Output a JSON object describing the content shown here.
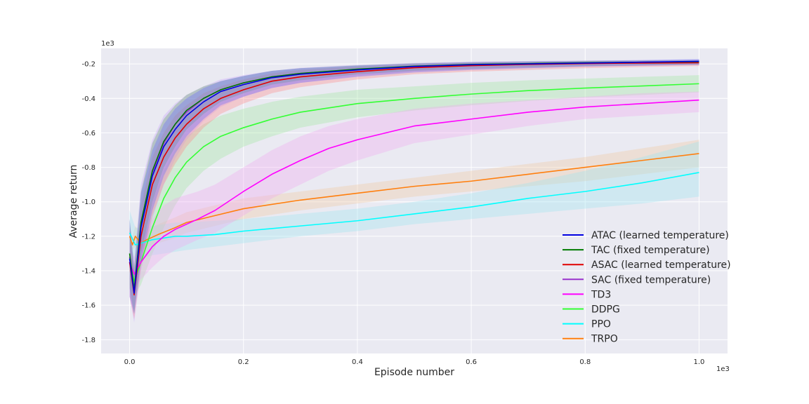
{
  "chart_data": {
    "type": "line",
    "xlabel": "Episode number",
    "ylabel": "Average return",
    "x_multiplier": "1e3",
    "y_multiplier": "1e3",
    "xlim": [
      -0.05,
      1.05
    ],
    "ylim": [
      -1.88,
      -0.11
    ],
    "x_ticks": [
      "0.0",
      "0.2",
      "0.4",
      "0.6",
      "0.8",
      "1.0"
    ],
    "y_ticks": [
      "-0.2",
      "-0.4",
      "-0.6",
      "-0.8",
      "-1.0",
      "-1.2",
      "-1.4",
      "-1.6",
      "-1.8"
    ],
    "grid": true,
    "legend_position": "lower-right",
    "series": [
      {
        "name": "ATAC (learned temperature)",
        "color": "#0000e0",
        "band_color": "#6a6aff",
        "x": [
          0.0,
          0.008,
          0.02,
          0.04,
          0.06,
          0.08,
          0.1,
          0.13,
          0.16,
          0.2,
          0.25,
          0.3,
          0.4,
          0.5,
          0.6,
          0.7,
          0.8,
          0.9,
          1.0
        ],
        "y": [
          -1.33,
          -1.53,
          -1.15,
          -0.85,
          -0.68,
          -0.58,
          -0.5,
          -0.42,
          -0.36,
          -0.32,
          -0.28,
          -0.26,
          -0.235,
          -0.215,
          -0.205,
          -0.2,
          -0.195,
          -0.19,
          -0.185
        ],
        "lower": [
          -1.55,
          -1.65,
          -1.35,
          -1.05,
          -0.85,
          -0.72,
          -0.62,
          -0.52,
          -0.44,
          -0.39,
          -0.34,
          -0.31,
          -0.275,
          -0.25,
          -0.235,
          -0.225,
          -0.215,
          -0.21,
          -0.205
        ],
        "upper": [
          -1.1,
          -1.4,
          -0.95,
          -0.7,
          -0.55,
          -0.46,
          -0.4,
          -0.34,
          -0.3,
          -0.27,
          -0.24,
          -0.225,
          -0.21,
          -0.198,
          -0.19,
          -0.186,
          -0.182,
          -0.178,
          -0.172
        ]
      },
      {
        "name": "TAC (fixed temperature)",
        "color": "#007a00",
        "band_color": "#6aa86a",
        "x": [
          0.0,
          0.008,
          0.02,
          0.04,
          0.06,
          0.08,
          0.1,
          0.13,
          0.16,
          0.2,
          0.25,
          0.3,
          0.4,
          0.5,
          0.6,
          0.7,
          0.8,
          0.9,
          1.0
        ],
        "y": [
          -1.3,
          -1.51,
          -1.12,
          -0.82,
          -0.65,
          -0.55,
          -0.47,
          -0.4,
          -0.35,
          -0.31,
          -0.275,
          -0.255,
          -0.23,
          -0.213,
          -0.203,
          -0.198,
          -0.193,
          -0.19,
          -0.187
        ],
        "lower": [
          -1.5,
          -1.65,
          -1.3,
          -1.0,
          -0.8,
          -0.68,
          -0.58,
          -0.49,
          -0.42,
          -0.37,
          -0.32,
          -0.295,
          -0.26,
          -0.24,
          -0.228,
          -0.22,
          -0.213,
          -0.208,
          -0.204
        ],
        "upper": [
          -1.1,
          -1.38,
          -0.94,
          -0.66,
          -0.52,
          -0.44,
          -0.38,
          -0.33,
          -0.3,
          -0.27,
          -0.24,
          -0.225,
          -0.208,
          -0.196,
          -0.19,
          -0.186,
          -0.182,
          -0.18,
          -0.177
        ]
      },
      {
        "name": "ASAC (learned temperature)",
        "color": "#e00000",
        "band_color": "#ff8a8a",
        "x": [
          0.0,
          0.008,
          0.02,
          0.04,
          0.06,
          0.08,
          0.1,
          0.13,
          0.16,
          0.2,
          0.25,
          0.3,
          0.4,
          0.5,
          0.6,
          0.7,
          0.8,
          0.9,
          1.0
        ],
        "y": [
          -1.35,
          -1.54,
          -1.2,
          -0.9,
          -0.74,
          -0.63,
          -0.55,
          -0.46,
          -0.4,
          -0.35,
          -0.3,
          -0.275,
          -0.245,
          -0.222,
          -0.21,
          -0.203,
          -0.198,
          -0.195,
          -0.193
        ],
        "lower": [
          -1.55,
          -1.68,
          -1.38,
          -1.08,
          -0.9,
          -0.78,
          -0.68,
          -0.57,
          -0.49,
          -0.43,
          -0.37,
          -0.335,
          -0.29,
          -0.26,
          -0.245,
          -0.235,
          -0.225,
          -0.218,
          -0.212
        ],
        "upper": [
          -1.15,
          -1.42,
          -1.02,
          -0.74,
          -0.6,
          -0.5,
          -0.44,
          -0.37,
          -0.33,
          -0.29,
          -0.255,
          -0.235,
          -0.215,
          -0.2,
          -0.192,
          -0.188,
          -0.185,
          -0.182,
          -0.178
        ]
      },
      {
        "name": "SAC (fixed temperature)",
        "color": "#9932cc",
        "band_color": "#c8a0ff",
        "x": [
          0.0,
          0.008,
          0.02,
          0.04,
          0.06,
          0.08,
          0.1,
          0.13,
          0.16,
          0.2,
          0.25,
          0.3,
          0.4,
          0.5,
          0.6,
          0.7,
          0.8,
          0.9,
          1.0
        ],
        "y": [
          -1.32,
          -1.52,
          -1.13,
          -0.83,
          -0.66,
          -0.55,
          -0.48,
          -0.4,
          -0.35,
          -0.31,
          -0.275,
          -0.255,
          -0.232,
          -0.215,
          -0.205,
          -0.199,
          -0.195,
          -0.19,
          -0.187
        ],
        "lower": [
          -1.55,
          -1.7,
          -1.4,
          -1.1,
          -0.9,
          -0.75,
          -0.64,
          -0.53,
          -0.45,
          -0.39,
          -0.34,
          -0.31,
          -0.27,
          -0.245,
          -0.232,
          -0.224,
          -0.217,
          -0.211,
          -0.206
        ],
        "upper": [
          -1.1,
          -1.35,
          -0.9,
          -0.64,
          -0.5,
          -0.43,
          -0.38,
          -0.33,
          -0.29,
          -0.265,
          -0.24,
          -0.223,
          -0.205,
          -0.194,
          -0.187,
          -0.183,
          -0.18,
          -0.177,
          -0.174
        ]
      },
      {
        "name": "TD3",
        "color": "#ff00ff",
        "band_color": "#f0a8f0",
        "x": [
          0.0,
          0.008,
          0.02,
          0.04,
          0.06,
          0.08,
          0.1,
          0.12,
          0.15,
          0.2,
          0.25,
          0.3,
          0.35,
          0.4,
          0.5,
          0.6,
          0.7,
          0.8,
          0.9,
          1.0
        ],
        "y": [
          -1.35,
          -1.42,
          -1.35,
          -1.26,
          -1.2,
          -1.16,
          -1.13,
          -1.1,
          -1.05,
          -0.94,
          -0.84,
          -0.76,
          -0.69,
          -0.64,
          -0.56,
          -0.52,
          -0.48,
          -0.45,
          -0.43,
          -0.41
        ],
        "lower": [
          -1.45,
          -1.5,
          -1.45,
          -1.38,
          -1.32,
          -1.28,
          -1.25,
          -1.22,
          -1.18,
          -1.08,
          -0.98,
          -0.9,
          -0.82,
          -0.76,
          -0.66,
          -0.61,
          -0.56,
          -0.52,
          -0.5,
          -0.48
        ],
        "upper": [
          -1.25,
          -1.32,
          -1.22,
          -1.1,
          -1.02,
          -0.98,
          -0.96,
          -0.94,
          -0.9,
          -0.8,
          -0.7,
          -0.62,
          -0.56,
          -0.52,
          -0.46,
          -0.43,
          -0.41,
          -0.39,
          -0.37,
          -0.36
        ]
      },
      {
        "name": "DDPG",
        "color": "#33ff33",
        "band_color": "#a0e8a0",
        "x": [
          0.0,
          0.008,
          0.02,
          0.04,
          0.06,
          0.08,
          0.1,
          0.13,
          0.16,
          0.2,
          0.25,
          0.3,
          0.4,
          0.5,
          0.6,
          0.7,
          0.8,
          0.9,
          1.0
        ],
        "y": [
          -1.35,
          -1.46,
          -1.35,
          -1.15,
          -0.98,
          -0.86,
          -0.77,
          -0.68,
          -0.62,
          -0.57,
          -0.52,
          -0.48,
          -0.43,
          -0.4,
          -0.375,
          -0.355,
          -0.34,
          -0.328,
          -0.315
        ],
        "lower": [
          -1.48,
          -1.55,
          -1.48,
          -1.3,
          -1.15,
          -1.02,
          -0.92,
          -0.82,
          -0.75,
          -0.68,
          -0.62,
          -0.57,
          -0.51,
          -0.47,
          -0.44,
          -0.415,
          -0.395,
          -0.38,
          -0.365
        ],
        "upper": [
          -1.22,
          -1.36,
          -1.2,
          -1.0,
          -0.82,
          -0.7,
          -0.62,
          -0.55,
          -0.5,
          -0.46,
          -0.42,
          -0.39,
          -0.35,
          -0.33,
          -0.31,
          -0.295,
          -0.285,
          -0.275,
          -0.265
        ]
      },
      {
        "name": "PPO",
        "color": "#00ffff",
        "band_color": "#9ee4f0",
        "x": [
          0.0,
          0.01,
          0.02,
          0.04,
          0.06,
          0.08,
          0.1,
          0.15,
          0.2,
          0.3,
          0.4,
          0.5,
          0.6,
          0.7,
          0.8,
          0.9,
          1.0
        ],
        "y": [
          -1.18,
          -1.25,
          -1.24,
          -1.22,
          -1.21,
          -1.2,
          -1.2,
          -1.19,
          -1.17,
          -1.14,
          -1.11,
          -1.07,
          -1.03,
          -0.98,
          -0.94,
          -0.89,
          -0.83
        ],
        "lower": [
          -1.3,
          -1.34,
          -1.33,
          -1.31,
          -1.3,
          -1.29,
          -1.28,
          -1.26,
          -1.24,
          -1.2,
          -1.17,
          -1.13,
          -1.1,
          -1.07,
          -1.04,
          -1.01,
          -0.97
        ],
        "upper": [
          -1.05,
          -1.15,
          -1.15,
          -1.14,
          -1.13,
          -1.12,
          -1.12,
          -1.11,
          -1.1,
          -1.07,
          -1.04,
          -1.0,
          -0.95,
          -0.89,
          -0.82,
          -0.74,
          -0.65
        ]
      },
      {
        "name": "TRPO",
        "color": "#ff7f0e",
        "band_color": "#f0c8a0",
        "x": [
          0.0,
          0.005,
          0.01,
          0.02,
          0.03,
          0.05,
          0.08,
          0.1,
          0.15,
          0.2,
          0.3,
          0.4,
          0.5,
          0.6,
          0.7,
          0.8,
          0.9,
          1.0
        ],
        "y": [
          -1.2,
          -1.25,
          -1.2,
          -1.24,
          -1.22,
          -1.19,
          -1.15,
          -1.12,
          -1.08,
          -1.04,
          -0.99,
          -0.95,
          -0.91,
          -0.88,
          -0.84,
          -0.8,
          -0.76,
          -0.72
        ],
        "lower": [
          -1.25,
          -1.28,
          -1.26,
          -1.28,
          -1.26,
          -1.24,
          -1.21,
          -1.18,
          -1.14,
          -1.1,
          -1.05,
          -1.01,
          -0.97,
          -0.94,
          -0.91,
          -0.88,
          -0.84,
          -0.8
        ],
        "upper": [
          -1.15,
          -1.2,
          -1.14,
          -1.19,
          -1.17,
          -1.13,
          -1.09,
          -1.06,
          -1.02,
          -0.98,
          -0.94,
          -0.9,
          -0.86,
          -0.82,
          -0.78,
          -0.74,
          -0.69,
          -0.64
        ]
      }
    ]
  }
}
